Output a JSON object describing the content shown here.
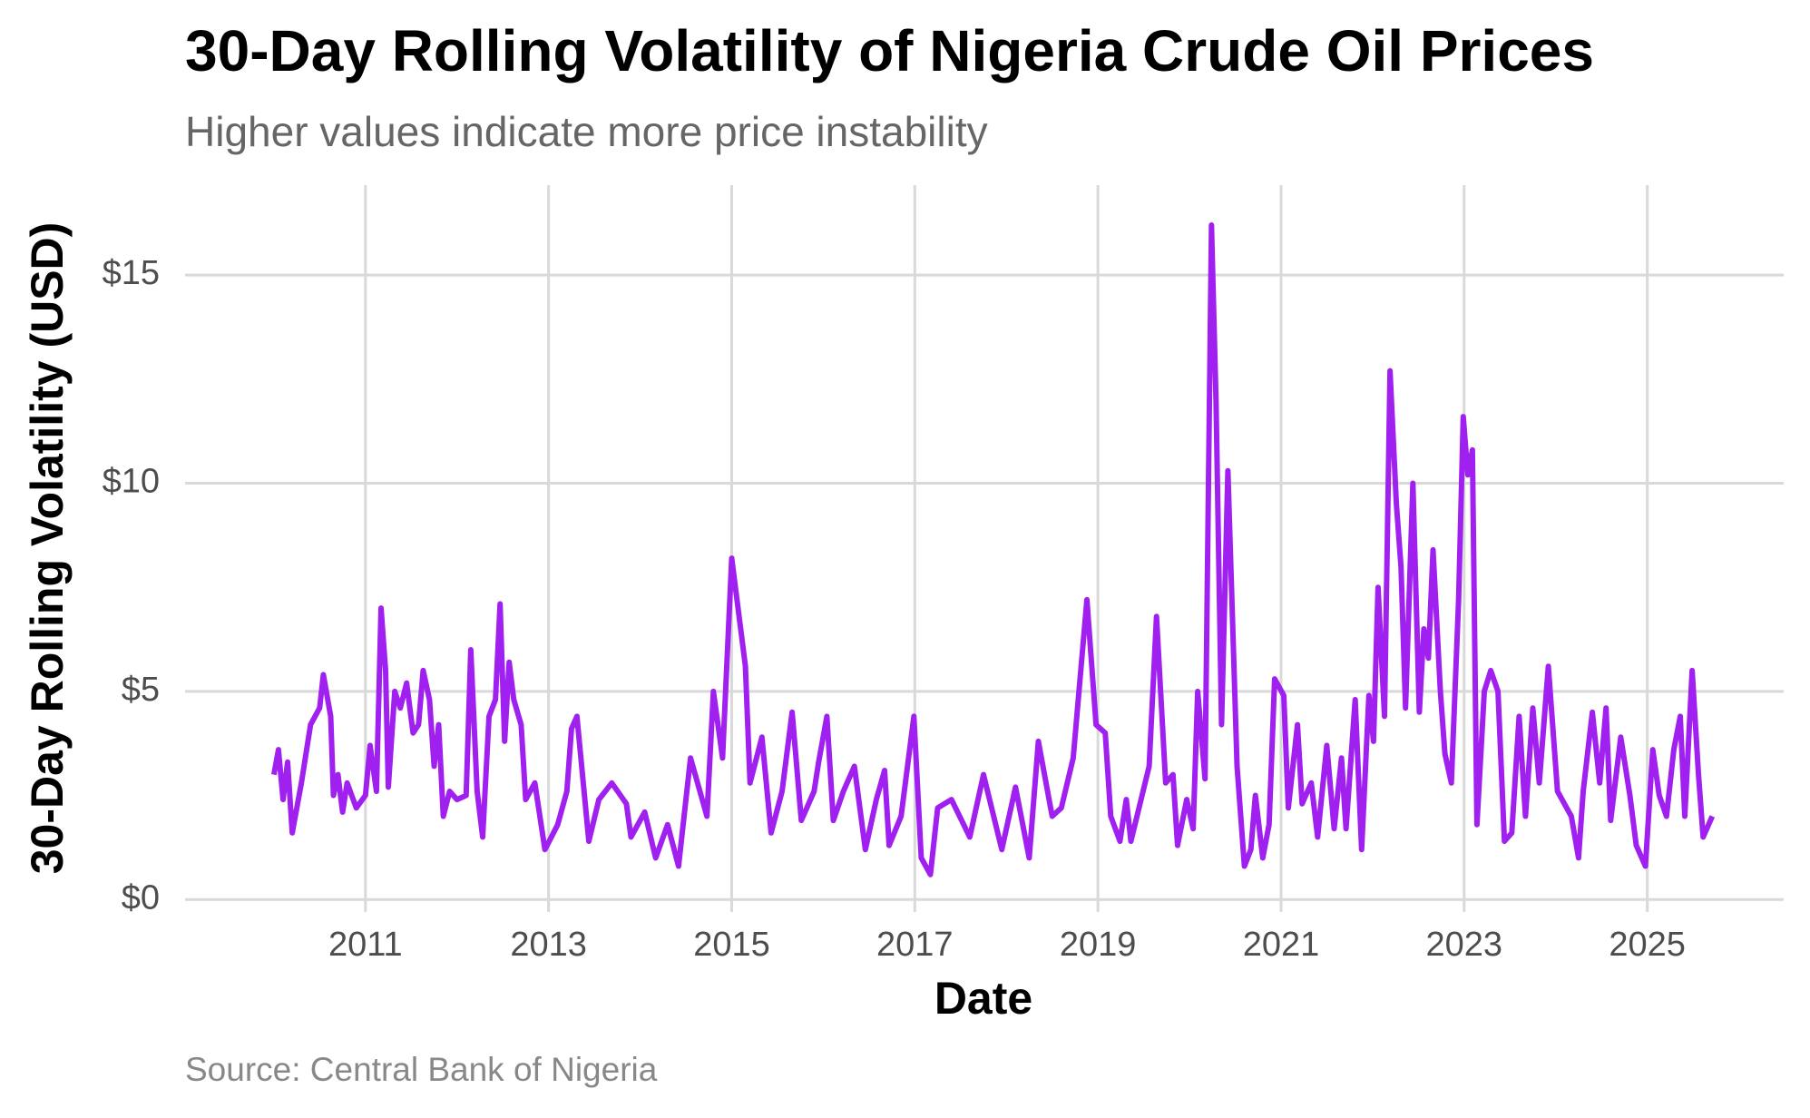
{
  "chart_data": {
    "type": "line",
    "title": "30-Day Rolling Volatility of Nigeria Crude Oil Prices",
    "subtitle": "Higher values indicate more price instability",
    "x_label": "Date",
    "y_label": "30-Day Rolling Volatility (USD)",
    "caption": "Source: Central Bank of Nigeria",
    "color": "#a020f0",
    "grid": true,
    "xlim": [
      2009.03,
      2026.49
    ],
    "ylim": [
      -0.3,
      17.16
    ],
    "xticks": [
      2011,
      2013,
      2015,
      2017,
      2019,
      2021,
      2023,
      2025
    ],
    "yticks": [
      {
        "value": 0,
        "label": "$0"
      },
      {
        "value": 5,
        "label": "$5"
      },
      {
        "value": 10,
        "label": "$10"
      },
      {
        "value": 15,
        "label": "$15"
      }
    ],
    "x": [
      2010.0,
      2010.05,
      2010.1,
      2010.15,
      2010.2,
      2010.3,
      2010.4,
      2010.5,
      2010.54,
      2010.62,
      2010.65,
      2010.7,
      2010.75,
      2010.8,
      2010.9,
      2011.0,
      2011.05,
      2011.12,
      2011.17,
      2011.22,
      2011.25,
      2011.32,
      2011.38,
      2011.45,
      2011.52,
      2011.58,
      2011.63,
      2011.7,
      2011.75,
      2011.8,
      2011.85,
      2011.92,
      2012.0,
      2012.1,
      2012.15,
      2012.22,
      2012.28,
      2012.35,
      2012.42,
      2012.47,
      2012.52,
      2012.57,
      2012.62,
      2012.7,
      2012.75,
      2012.85,
      2012.96,
      2013.1,
      2013.2,
      2013.25,
      2013.31,
      2013.44,
      2013.55,
      2013.69,
      2013.85,
      2013.9,
      2014.05,
      2014.17,
      2014.3,
      2014.42,
      2014.55,
      2014.73,
      2014.8,
      2014.9,
      2015.0,
      2015.15,
      2015.2,
      2015.33,
      2015.43,
      2015.55,
      2015.66,
      2015.76,
      2015.9,
      2015.95,
      2016.04,
      2016.11,
      2016.22,
      2016.34,
      2016.46,
      2016.58,
      2016.67,
      2016.72,
      2016.85,
      2016.99,
      2017.07,
      2017.17,
      2017.25,
      2017.4,
      2017.6,
      2017.75,
      2017.95,
      2018.1,
      2018.25,
      2018.35,
      2018.5,
      2018.6,
      2018.73,
      2018.88,
      2018.98,
      2019.08,
      2019.14,
      2019.24,
      2019.31,
      2019.36,
      2019.56,
      2019.64,
      2019.74,
      2019.82,
      2019.87,
      2019.97,
      2020.04,
      2020.09,
      2020.17,
      2020.24,
      2020.29,
      2020.35,
      2020.42,
      2020.52,
      2020.6,
      2020.67,
      2020.72,
      2020.8,
      2020.87,
      2020.93,
      2021.03,
      2021.08,
      2021.18,
      2021.23,
      2021.33,
      2021.4,
      2021.5,
      2021.58,
      2021.66,
      2021.71,
      2021.81,
      2021.88,
      2021.96,
      2022.01,
      2022.06,
      2022.13,
      2022.19,
      2022.26,
      2022.31,
      2022.36,
      2022.44,
      2022.51,
      2022.56,
      2022.61,
      2022.66,
      2022.74,
      2022.79,
      2022.86,
      2022.94,
      2022.99,
      2023.04,
      2023.09,
      2023.14,
      2023.22,
      2023.29,
      2023.37,
      2023.44,
      2023.52,
      2023.6,
      2023.67,
      2023.75,
      2023.82,
      2023.92,
      2024.02,
      2024.17,
      2024.25,
      2024.3,
      2024.4,
      2024.48,
      2024.55,
      2024.6,
      2024.71,
      2024.81,
      2024.88,
      2024.98,
      2025.06,
      2025.13,
      2025.21,
      2025.29,
      2025.36,
      2025.41,
      2025.49,
      2025.56,
      2025.61,
      2025.71
    ],
    "values": [
      3.0,
      3.6,
      2.4,
      3.3,
      1.6,
      2.8,
      4.2,
      4.6,
      5.4,
      4.4,
      2.5,
      3.0,
      2.1,
      2.8,
      2.2,
      2.5,
      3.7,
      2.6,
      7.0,
      5.5,
      2.7,
      5.0,
      4.6,
      5.2,
      4.0,
      4.2,
      5.5,
      4.8,
      3.2,
      4.2,
      2.0,
      2.6,
      2.4,
      2.5,
      6.0,
      2.6,
      1.5,
      4.4,
      4.8,
      7.1,
      3.8,
      5.7,
      4.8,
      4.2,
      2.4,
      2.8,
      1.2,
      1.8,
      2.6,
      4.1,
      4.4,
      1.4,
      2.4,
      2.8,
      2.3,
      1.5,
      2.1,
      1.0,
      1.8,
      0.8,
      3.4,
      2.0,
      5.0,
      3.4,
      8.2,
      5.6,
      2.8,
      3.9,
      1.6,
      2.6,
      4.5,
      1.9,
      2.6,
      3.3,
      4.4,
      1.9,
      2.6,
      3.2,
      1.2,
      2.4,
      3.1,
      1.3,
      2.0,
      4.4,
      1.0,
      0.6,
      2.2,
      2.4,
      1.5,
      3.0,
      1.2,
      2.7,
      1.0,
      3.8,
      2.0,
      2.2,
      3.4,
      7.2,
      4.2,
      4.0,
      2.0,
      1.4,
      2.4,
      1.4,
      3.2,
      6.8,
      2.8,
      3.0,
      1.3,
      2.4,
      1.7,
      5.0,
      2.9,
      16.2,
      12.0,
      4.2,
      10.3,
      3.2,
      0.8,
      1.2,
      2.5,
      1.0,
      1.8,
      5.3,
      4.9,
      2.2,
      4.2,
      2.3,
      2.8,
      1.5,
      3.7,
      1.7,
      3.4,
      1.7,
      4.8,
      1.2,
      4.9,
      3.8,
      7.5,
      4.4,
      12.7,
      9.5,
      8.0,
      4.6,
      10.0,
      4.5,
      6.5,
      5.8,
      8.4,
      5.0,
      3.5,
      2.8,
      7.2,
      11.6,
      10.2,
      10.8,
      1.8,
      5.0,
      5.5,
      5.0,
      1.4,
      1.6,
      4.4,
      2.0,
      4.6,
      2.8,
      5.6,
      2.6,
      2.0,
      1.0,
      2.6,
      4.5,
      2.8,
      4.6,
      1.9,
      3.9,
      2.5,
      1.3,
      0.8,
      3.6,
      2.5,
      2.0,
      3.6,
      4.4,
      2.0,
      5.5,
      3.0,
      1.5,
      2.0
    ]
  }
}
